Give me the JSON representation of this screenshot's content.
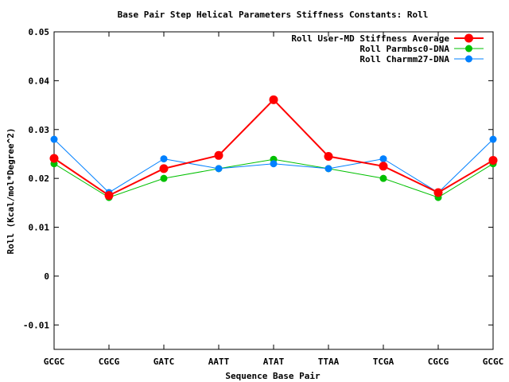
{
  "chart_data": {
    "type": "line",
    "title": "Base Pair Step Helical Parameters Stiffness Constants: Roll",
    "xlabel": "Sequence Base Pair",
    "ylabel": "Roll (Kcal/mol*Degree^2)",
    "categories": [
      "GCGC",
      "CGCG",
      "GATC",
      "AATT",
      "ATAT",
      "TTAA",
      "TCGA",
      "CGCG",
      "GCGC"
    ],
    "ylim": [
      -0.015,
      0.05
    ],
    "yticks": [
      -0.01,
      0,
      0.01,
      0.02,
      0.03,
      0.04,
      0.05
    ],
    "ytick_labels": [
      "-0.01",
      "0",
      "0.01",
      "0.02",
      "0.03",
      "0.04",
      "0.05"
    ],
    "grid": false,
    "legend_position": "top-right",
    "series": [
      {
        "name": "Roll User-MD Stiffness Average",
        "color": "#ff0000",
        "values": [
          0.0241,
          0.0165,
          0.022,
          0.0247,
          0.0361,
          0.0245,
          0.0225,
          0.0171,
          0.0237
        ]
      },
      {
        "name": "Roll Parmbsc0-DNA",
        "color": "#00c000",
        "values": [
          0.023,
          0.0161,
          0.02,
          0.022,
          0.0239,
          0.022,
          0.02,
          0.0161,
          0.023
        ]
      },
      {
        "name": "Roll Charmm27-DNA",
        "color": "#0080ff",
        "values": [
          0.028,
          0.0171,
          0.024,
          0.022,
          0.023,
          0.022,
          0.024,
          0.0171,
          0.028
        ]
      }
    ]
  }
}
